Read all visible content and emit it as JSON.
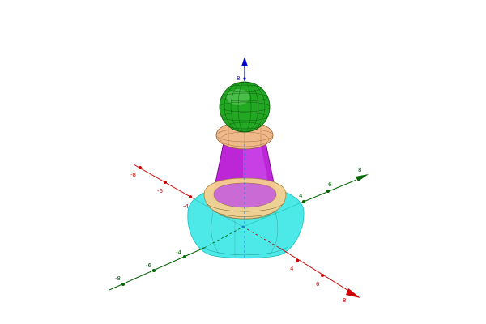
{
  "view": {
    "type": "GeoGebra 3D Graphics view"
  },
  "axes": {
    "x": {
      "color": "#cc0000",
      "tick_labels": [
        "-8",
        "-6",
        "-4",
        "4",
        "6",
        "8"
      ]
    },
    "y": {
      "color": "#006400",
      "tick_labels": [
        "-8",
        "-6",
        "-4",
        "4",
        "6",
        "8"
      ]
    },
    "z": {
      "color": "#0000cc",
      "tick_labels": [
        "8"
      ]
    }
  },
  "object": {
    "name": "pawn",
    "parts": [
      {
        "name": "base",
        "color": "#2ee5e5"
      },
      {
        "name": "base-ring",
        "color": "#f5cf8e"
      },
      {
        "name": "body",
        "color": "#b000d0"
      },
      {
        "name": "collar",
        "color": "#f0b98a"
      },
      {
        "name": "head",
        "color": "#22a822"
      }
    ]
  }
}
